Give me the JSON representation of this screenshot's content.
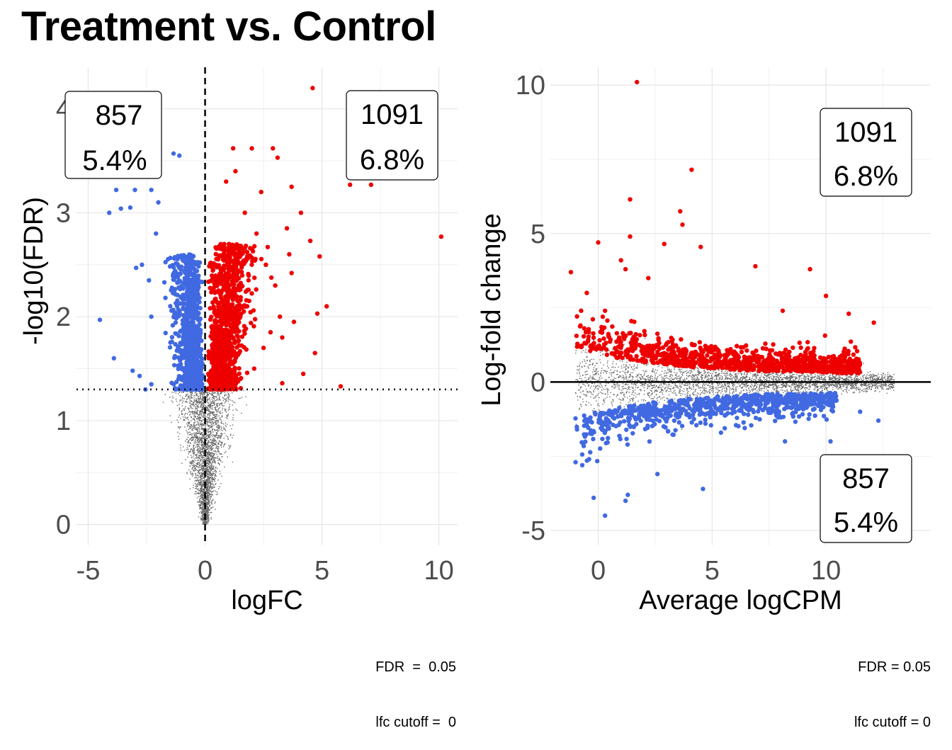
{
  "title": "Treatment vs. Control",
  "colors": {
    "up": "#ee0000",
    "down": "#4169e1",
    "ns": "#666666",
    "grid": "#e6e6e6"
  },
  "chart_data": [
    {
      "type": "scatter",
      "name": "volcano",
      "xlabel": "logFC",
      "ylabel": "-log10(FDR)",
      "xlim": [
        -5.5,
        10.8
      ],
      "ylim": [
        -0.2,
        4.4
      ],
      "xticks": [
        -5,
        0,
        5,
        10
      ],
      "yticks": [
        0,
        1,
        2,
        3,
        4
      ],
      "xtick_labels": [
        "-5",
        "0",
        "5",
        "10"
      ],
      "ytick_labels": [
        "0",
        "1",
        "2",
        "3",
        "4"
      ],
      "fdr_threshold_line": 1.3,
      "lfc_line": 0,
      "grid": true,
      "annotations": [
        {
          "id": "down",
          "count": "857",
          "percent": "5.4%",
          "position": "top-left"
        },
        {
          "id": "up",
          "count": "1091",
          "percent": "6.8%",
          "position": "top-right"
        }
      ],
      "caption": [
        "FDR  =  0.05",
        "lfc cutoff =  0"
      ],
      "highlighted_up": [
        [
          4.6,
          4.2
        ],
        [
          2,
          3.62
        ],
        [
          1.2,
          3.62
        ],
        [
          2.9,
          3.62
        ],
        [
          3.1,
          3.53
        ],
        [
          1.3,
          3.4
        ],
        [
          0.9,
          3.3
        ],
        [
          2.4,
          3.2
        ],
        [
          3.7,
          3.25
        ],
        [
          4.1,
          3.0
        ],
        [
          7.1,
          3.27
        ],
        [
          6.2,
          3.27
        ],
        [
          10.1,
          2.77
        ],
        [
          4.5,
          2.73
        ],
        [
          3.6,
          2.6
        ],
        [
          4.9,
          2.58
        ],
        [
          3.7,
          2.42
        ],
        [
          5.2,
          2.1
        ],
        [
          4.8,
          2.03
        ],
        [
          5.8,
          1.33
        ],
        [
          4.7,
          1.65
        ],
        [
          3.3,
          1.36
        ],
        [
          2.1,
          1.5
        ],
        [
          2.5,
          1.7
        ],
        [
          3.3,
          1.8
        ],
        [
          3.8,
          1.95
        ],
        [
          3.0,
          2.3
        ],
        [
          2.6,
          2.5
        ],
        [
          2.2,
          2.8
        ],
        [
          3.5,
          2.85
        ],
        [
          1.7,
          3.0
        ],
        [
          1.5,
          1.4
        ],
        [
          1.8,
          2.1
        ],
        [
          3.2,
          2.0
        ],
        [
          2.8,
          1.85
        ],
        [
          4.2,
          1.45
        ]
      ],
      "highlighted_down": [
        [
          -4.5,
          1.97
        ],
        [
          -3.9,
          1.6
        ],
        [
          -4.1,
          3.0
        ],
        [
          -3.8,
          3.22
        ],
        [
          -3.6,
          3.04
        ],
        [
          -3.0,
          3.22
        ],
        [
          -2.3,
          3.22
        ],
        [
          -1.35,
          3.57
        ],
        [
          -1.1,
          3.55
        ],
        [
          -3.1,
          1.48
        ],
        [
          -2.8,
          1.43
        ],
        [
          -2.55,
          1.3
        ],
        [
          -2.3,
          1.35
        ],
        [
          -2.95,
          2.47
        ],
        [
          -2.7,
          2.5
        ],
        [
          -2.3,
          2.0
        ],
        [
          -2.1,
          2.8
        ],
        [
          -3.2,
          3.05
        ],
        [
          -2.0,
          3.1
        ],
        [
          -2.4,
          2.35
        ]
      ]
    },
    {
      "type": "scatter",
      "name": "ma-plot",
      "xlabel": "Average logCPM",
      "ylabel": "Log-fold change",
      "xlim": [
        -2.1,
        14.6
      ],
      "ylim": [
        -5.5,
        10.6
      ],
      "xticks": [
        0,
        5,
        10
      ],
      "yticks": [
        -5,
        0,
        5,
        10
      ],
      "xtick_labels": [
        "0",
        "5",
        "10"
      ],
      "ytick_labels": [
        "-5",
        "0",
        "5",
        "10"
      ],
      "zero_line": 0,
      "grid": true,
      "annotations": [
        {
          "id": "up",
          "count": "1091",
          "percent": "6.8%",
          "position": "top-right"
        },
        {
          "id": "down",
          "count": "857",
          "percent": "5.4%",
          "position": "bottom-right"
        }
      ],
      "caption": [
        "FDR = 0.05",
        "lfc cutoff = 0"
      ],
      "highlighted_up": [
        [
          1.7,
          10.1
        ],
        [
          4.1,
          7.15
        ],
        [
          1.4,
          6.15
        ],
        [
          3.6,
          5.75
        ],
        [
          3.7,
          5.3
        ],
        [
          1.4,
          4.9
        ],
        [
          0.0,
          4.7
        ],
        [
          2.9,
          4.65
        ],
        [
          4.5,
          4.55
        ],
        [
          -1.2,
          3.7
        ],
        [
          1.0,
          4.1
        ],
        [
          1.2,
          3.8
        ],
        [
          6.9,
          3.9
        ],
        [
          9.3,
          3.8
        ],
        [
          2.2,
          3.5
        ],
        [
          -0.5,
          3.0
        ],
        [
          10.0,
          2.9
        ],
        [
          11.0,
          2.3
        ],
        [
          12.1,
          2.0
        ],
        [
          0.3,
          2.4
        ],
        [
          8.1,
          2.4
        ]
      ],
      "highlighted_down": [
        [
          -0.2,
          -3.9
        ],
        [
          0.3,
          -4.5
        ],
        [
          1.2,
          -4.0
        ],
        [
          1.3,
          -3.8
        ],
        [
          4.6,
          -3.6
        ],
        [
          -0.7,
          -2.8
        ],
        [
          10.2,
          -2.0
        ],
        [
          12.3,
          -1.3
        ],
        [
          -0.4,
          -2.6
        ],
        [
          2.6,
          -3.1
        ],
        [
          8.2,
          -2.0
        ],
        [
          11.5,
          -1.0
        ]
      ]
    }
  ]
}
